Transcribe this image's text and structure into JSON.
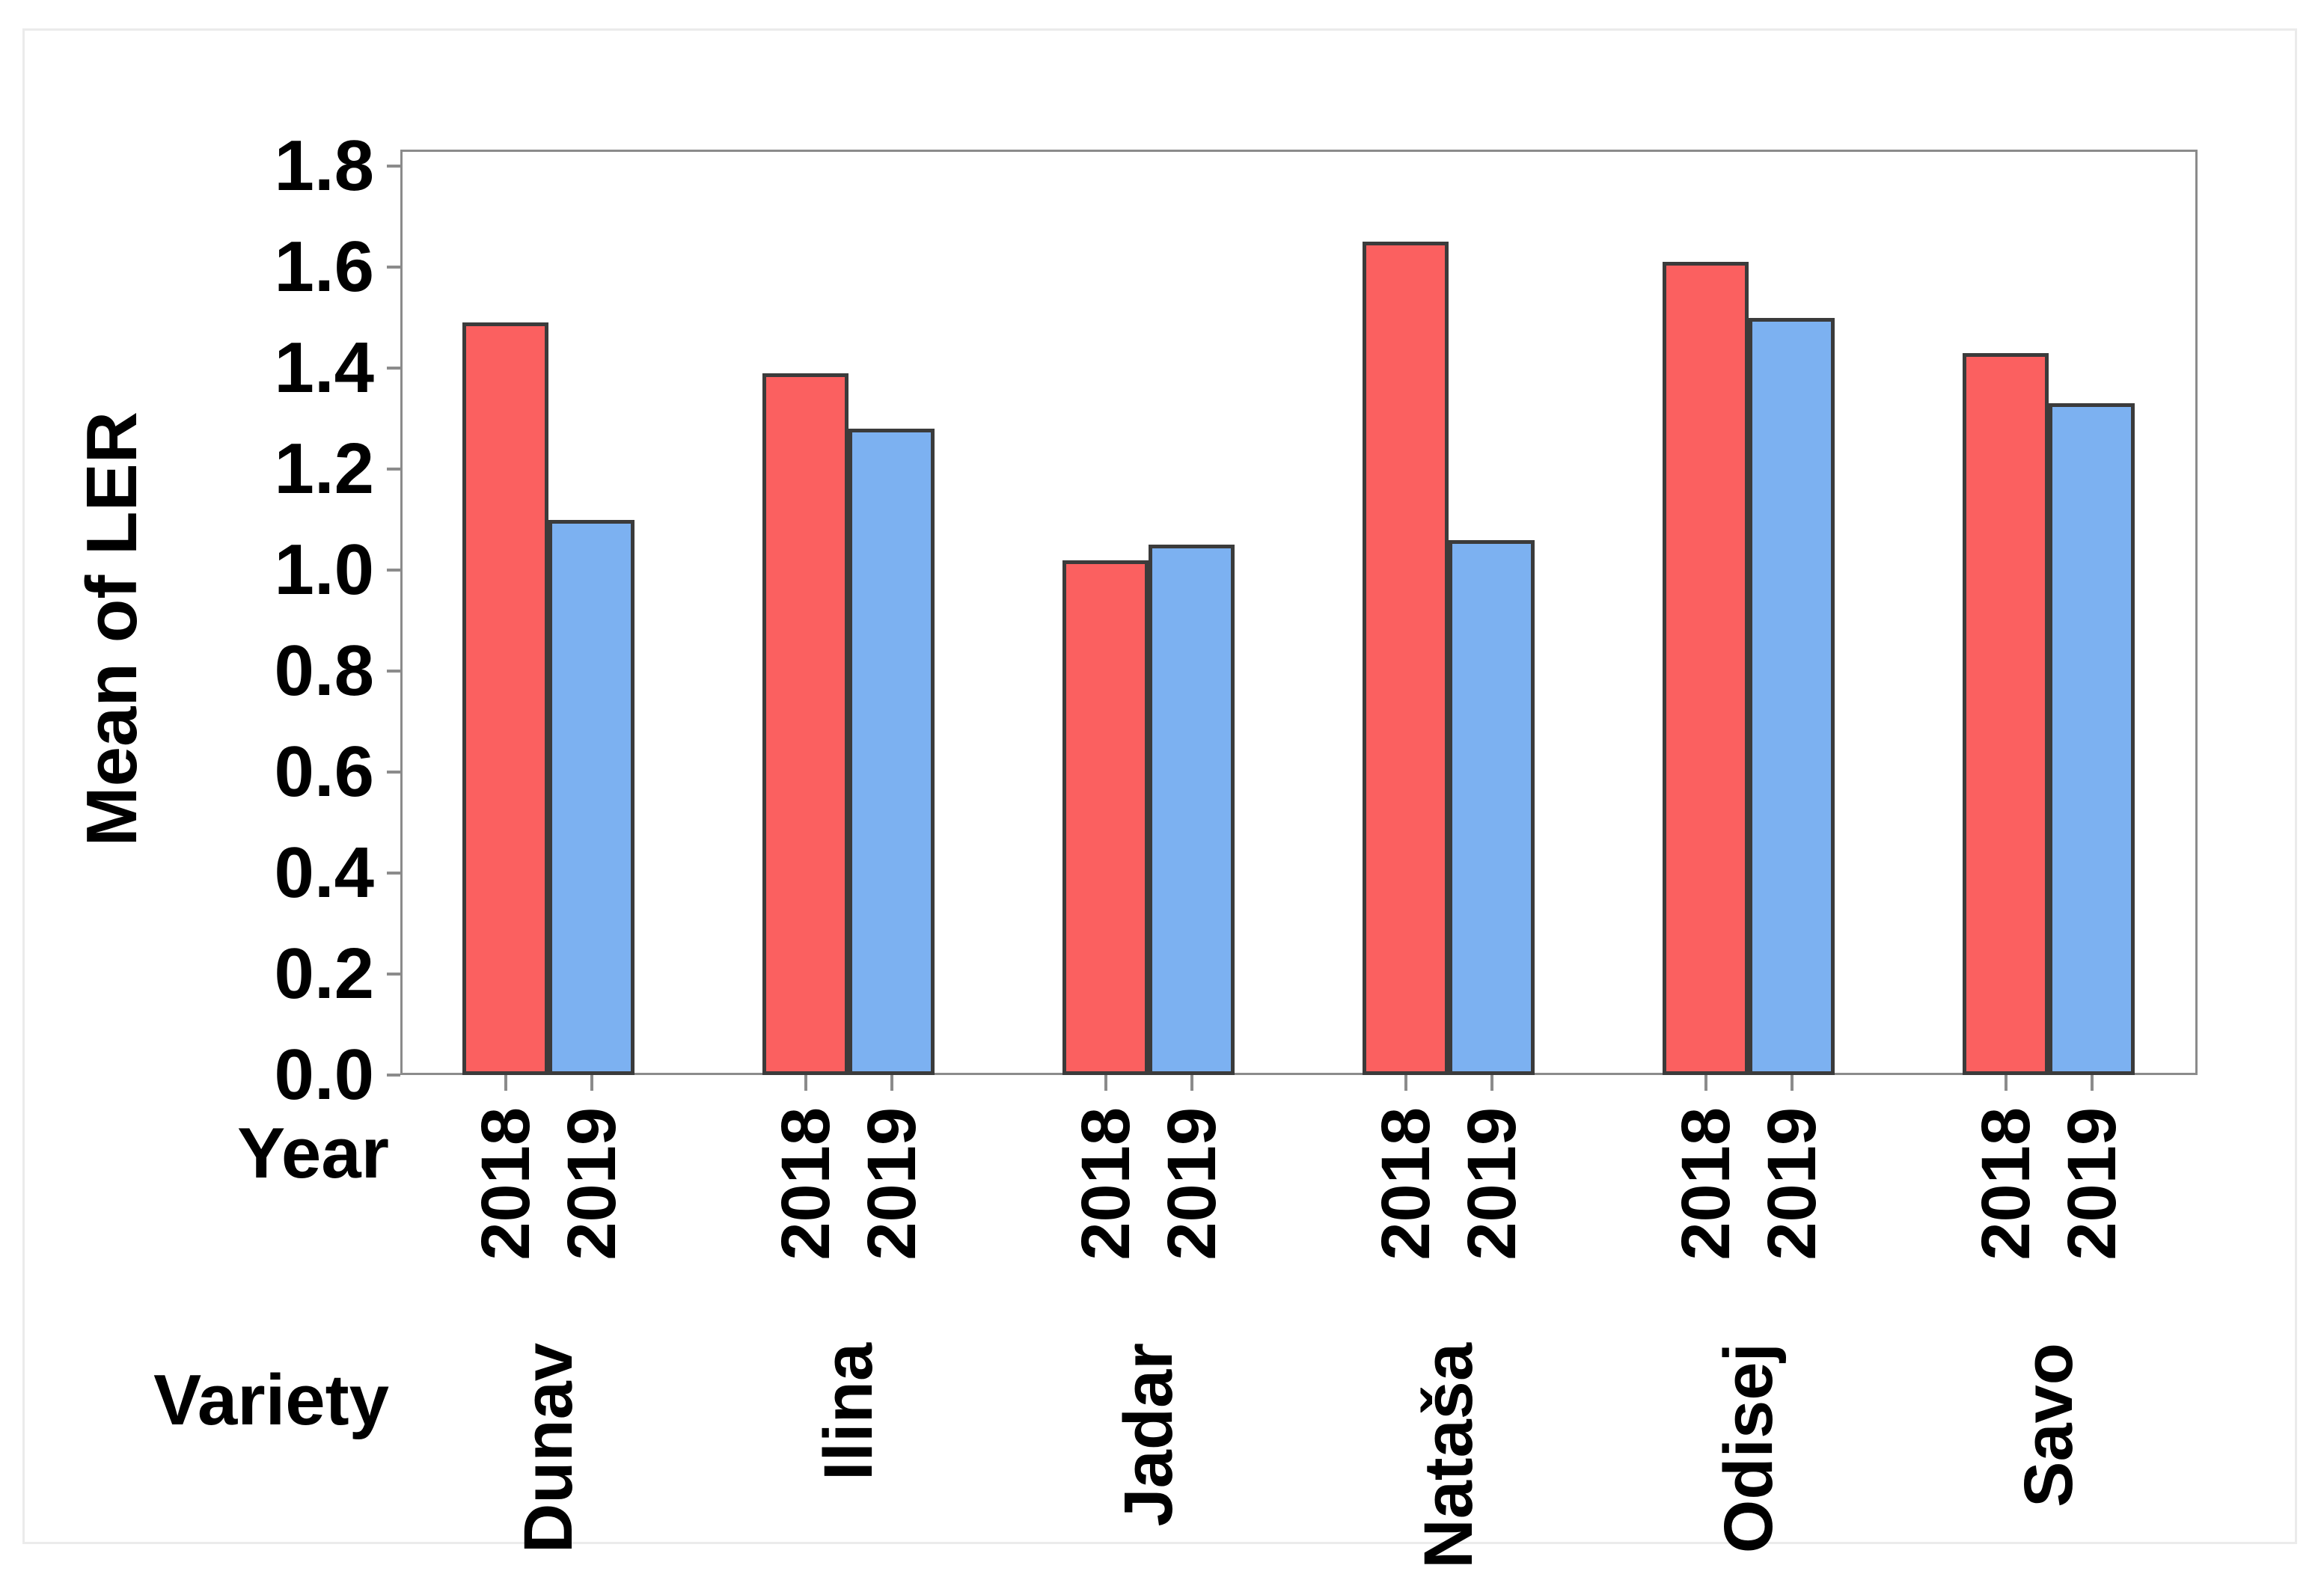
{
  "figure": {
    "background": "#ffffff",
    "border_color": "#ebebeb",
    "axis_color": "#8b8b8b",
    "bar_border_color": "#3b3b3b",
    "text_color": "#000000"
  },
  "axis_titles": {
    "y": "Mean of LER",
    "x_year": "Year",
    "x_variety": "Variety"
  },
  "chart_data": {
    "type": "bar",
    "title": "",
    "ylabel": "Mean of LER",
    "xlabel": "Variety",
    "group_label": "Year",
    "ylim": [
      0.0,
      1.8
    ],
    "ytick_step": 0.2,
    "ytick_labels": [
      "0.0",
      "0.2",
      "0.4",
      "0.6",
      "0.8",
      "1.0",
      "1.2",
      "1.4",
      "1.6",
      "1.8"
    ],
    "grid": false,
    "legend_position": "none",
    "categories": [
      "Dunav",
      "Ilina",
      "Jadar",
      "Nataša",
      "Odisej",
      "Savo"
    ],
    "series": [
      {
        "name": "2018",
        "color": "#fb6060",
        "values": [
          1.49,
          1.39,
          1.02,
          1.65,
          1.61,
          1.43
        ]
      },
      {
        "name": "2019",
        "color": "#7cb1f1",
        "values": [
          1.1,
          1.28,
          1.05,
          1.06,
          1.5,
          1.33
        ]
      }
    ]
  }
}
